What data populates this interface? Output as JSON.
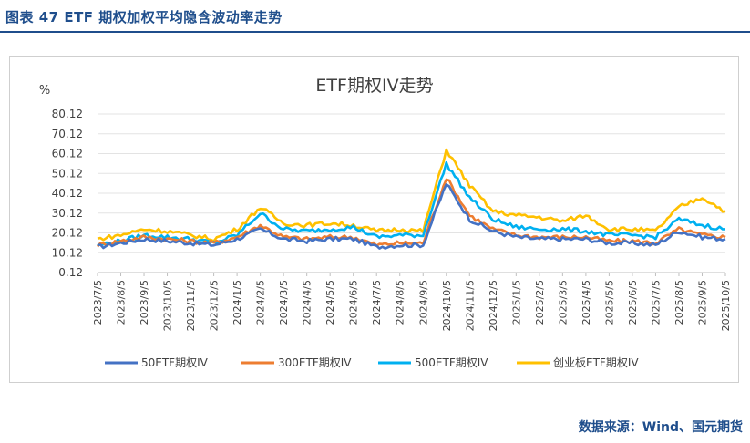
{
  "caption": "图表 47 ETF 期权加权平均隐含波动率走势",
  "source": "数据来源：Wind、国元期货",
  "chart_data": {
    "type": "line",
    "title": "ETF期权IV走势",
    "ylabel": "%",
    "ylim": [
      0.12,
      80.12
    ],
    "yticks": [
      "80.12",
      "70.12",
      "60.12",
      "50.12",
      "40.12",
      "30.12",
      "20.12",
      "10.12",
      "0.12"
    ],
    "x": [
      "2023/7/5",
      "2023/8/5",
      "2023/9/5",
      "2023/10/5",
      "2023/11/5",
      "2023/12/5",
      "2024/1/5",
      "2024/2/5",
      "2024/3/5",
      "2024/4/5",
      "2024/5/5",
      "2024/6/5",
      "2024/7/5",
      "2024/8/5",
      "2024/9/5",
      "2024/10/5",
      "2024/11/5",
      "2024/12/5",
      "2025/1/5",
      "2025/2/5",
      "2025/3/5",
      "2025/4/5",
      "2025/5/5",
      "2025/6/5",
      "2025/7/5",
      "2025/8/5",
      "2025/9/5",
      "2025/10/5"
    ],
    "legend_position": "bottom",
    "series": [
      {
        "name": "50ETF期权IV",
        "color": "#4472c4",
        "values": [
          13,
          15,
          17,
          16,
          15,
          14,
          17,
          22,
          17,
          16,
          17,
          17,
          13,
          14,
          14,
          45,
          27,
          21,
          18,
          17,
          17,
          17,
          15,
          15,
          14,
          21,
          18,
          17
        ]
      },
      {
        "name": "300ETF期权IV",
        "color": "#ed7d31",
        "values": [
          14,
          16,
          18,
          17,
          16,
          15,
          18,
          24,
          18,
          17,
          18,
          18,
          14,
          15,
          15,
          48,
          29,
          22,
          19,
          18,
          18,
          18,
          16,
          16,
          15,
          22,
          19,
          18
        ]
      },
      {
        "name": "500ETF期权IV",
        "color": "#00b0f0",
        "values": [
          14,
          16,
          19,
          18,
          17,
          15,
          19,
          30,
          22,
          21,
          22,
          23,
          18,
          19,
          19,
          55,
          38,
          27,
          23,
          22,
          22,
          21,
          19,
          19,
          18,
          27,
          24,
          22
        ]
      },
      {
        "name": "创业板ETF期权IV",
        "color": "#ffc000",
        "values": [
          17,
          19,
          22,
          21,
          19,
          17,
          22,
          33,
          25,
          24,
          25,
          24,
          21,
          22,
          21,
          62,
          44,
          31,
          29,
          28,
          26,
          29,
          22,
          22,
          21,
          33,
          38,
          31
        ]
      }
    ]
  }
}
